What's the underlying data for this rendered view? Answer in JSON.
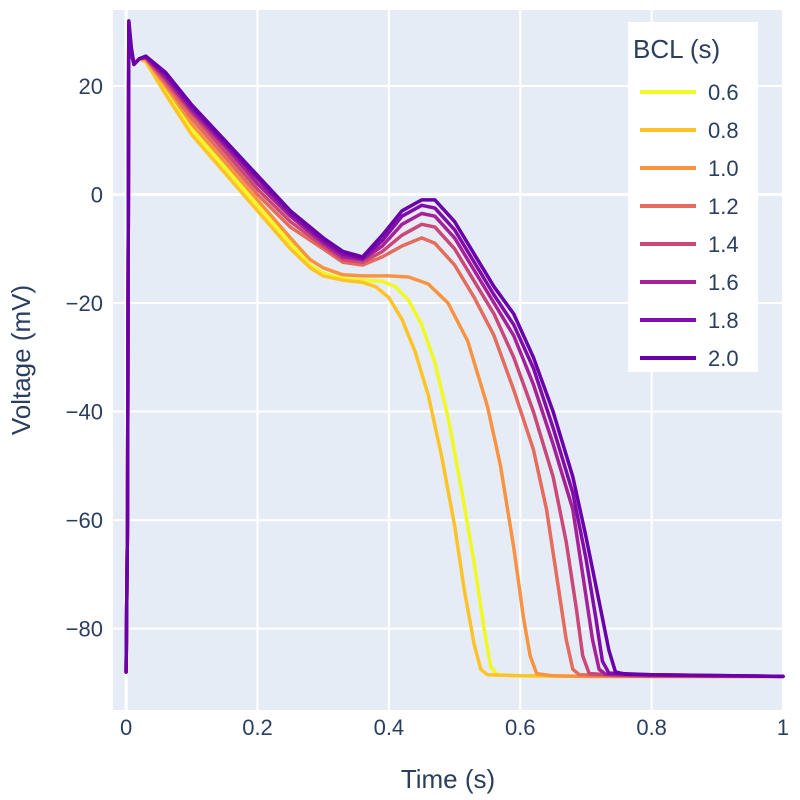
{
  "chart_data": {
    "type": "line",
    "xlabel": "Time (s)",
    "ylabel": "Voltage (mV)",
    "xlim": [
      -0.02,
      1.0
    ],
    "ylim": [
      -95,
      34
    ],
    "x_ticks": [
      0,
      0.2,
      0.4,
      0.6,
      0.8,
      1
    ],
    "x_tick_labels": [
      "0",
      "0.2",
      "0.4",
      "0.6",
      "0.8",
      "1"
    ],
    "y_ticks": [
      -80,
      -60,
      -40,
      -20,
      0,
      20
    ],
    "y_tick_labels": [
      "−80",
      "−60",
      "−40",
      "−20",
      "0",
      "20"
    ],
    "grid": true,
    "plot_background": "#e5ecf6",
    "legend": {
      "title": "BCL (s)",
      "position": "top-right"
    },
    "series": [
      {
        "name": "0.6",
        "color": "#f0f921",
        "points": [
          [
            0,
            -88
          ],
          [
            0.002,
            -60
          ],
          [
            0.004,
            31
          ],
          [
            0.008,
            26
          ],
          [
            0.012,
            24
          ],
          [
            0.02,
            25
          ],
          [
            0.03,
            24.5
          ],
          [
            0.06,
            19
          ],
          [
            0.1,
            12
          ],
          [
            0.15,
            5
          ],
          [
            0.2,
            -2
          ],
          [
            0.25,
            -9
          ],
          [
            0.28,
            -13
          ],
          [
            0.3,
            -14.5
          ],
          [
            0.33,
            -15.5
          ],
          [
            0.36,
            -15.8
          ],
          [
            0.39,
            -16
          ],
          [
            0.41,
            -17
          ],
          [
            0.43,
            -19.5
          ],
          [
            0.45,
            -24
          ],
          [
            0.47,
            -31
          ],
          [
            0.49,
            -41
          ],
          [
            0.51,
            -54
          ],
          [
            0.53,
            -68
          ],
          [
            0.545,
            -80
          ],
          [
            0.555,
            -87
          ],
          [
            0.565,
            -88.5
          ],
          [
            0.6,
            -88.7
          ],
          [
            0.7,
            -88.8
          ],
          [
            0.8,
            -88.8
          ],
          [
            1.0,
            -88.8
          ]
        ]
      },
      {
        "name": "0.8",
        "color": "#fdc328",
        "points": [
          [
            0,
            -88
          ],
          [
            0.002,
            -60
          ],
          [
            0.004,
            31
          ],
          [
            0.008,
            26
          ],
          [
            0.012,
            24
          ],
          [
            0.02,
            25
          ],
          [
            0.03,
            24.5
          ],
          [
            0.06,
            18.5
          ],
          [
            0.1,
            11
          ],
          [
            0.15,
            4
          ],
          [
            0.2,
            -3
          ],
          [
            0.25,
            -10
          ],
          [
            0.28,
            -13.5
          ],
          [
            0.3,
            -15
          ],
          [
            0.33,
            -15.8
          ],
          [
            0.36,
            -16.2
          ],
          [
            0.38,
            -17
          ],
          [
            0.4,
            -19
          ],
          [
            0.42,
            -23
          ],
          [
            0.44,
            -29
          ],
          [
            0.46,
            -37
          ],
          [
            0.48,
            -48
          ],
          [
            0.5,
            -61
          ],
          [
            0.515,
            -73
          ],
          [
            0.53,
            -83
          ],
          [
            0.54,
            -87.5
          ],
          [
            0.55,
            -88.5
          ],
          [
            0.6,
            -88.7
          ],
          [
            0.7,
            -88.8
          ],
          [
            0.8,
            -88.8
          ],
          [
            1.0,
            -88.8
          ]
        ]
      },
      {
        "name": "1.0",
        "color": "#f89441",
        "points": [
          [
            0,
            -88
          ],
          [
            0.002,
            -60
          ],
          [
            0.004,
            31
          ],
          [
            0.008,
            26
          ],
          [
            0.012,
            24
          ],
          [
            0.02,
            25
          ],
          [
            0.03,
            25
          ],
          [
            0.06,
            20
          ],
          [
            0.1,
            13
          ],
          [
            0.15,
            6
          ],
          [
            0.2,
            -1
          ],
          [
            0.25,
            -8
          ],
          [
            0.28,
            -12
          ],
          [
            0.3,
            -13.5
          ],
          [
            0.33,
            -14.8
          ],
          [
            0.36,
            -15
          ],
          [
            0.4,
            -15
          ],
          [
            0.43,
            -15.2
          ],
          [
            0.46,
            -16.5
          ],
          [
            0.49,
            -20
          ],
          [
            0.52,
            -27
          ],
          [
            0.55,
            -39
          ],
          [
            0.57,
            -50
          ],
          [
            0.59,
            -65
          ],
          [
            0.605,
            -78
          ],
          [
            0.615,
            -85
          ],
          [
            0.625,
            -88.3
          ],
          [
            0.65,
            -88.7
          ],
          [
            0.7,
            -88.8
          ],
          [
            0.8,
            -88.8
          ],
          [
            1.0,
            -88.8
          ]
        ]
      },
      {
        "name": "1.2",
        "color": "#e56b5d",
        "points": [
          [
            0,
            -88
          ],
          [
            0.002,
            -60
          ],
          [
            0.004,
            31
          ],
          [
            0.008,
            26
          ],
          [
            0.012,
            24
          ],
          [
            0.02,
            25
          ],
          [
            0.03,
            25
          ],
          [
            0.06,
            20.5
          ],
          [
            0.1,
            14
          ],
          [
            0.15,
            7
          ],
          [
            0.2,
            0
          ],
          [
            0.25,
            -6
          ],
          [
            0.3,
            -10
          ],
          [
            0.33,
            -12.5
          ],
          [
            0.36,
            -13
          ],
          [
            0.39,
            -11.5
          ],
          [
            0.42,
            -9.5
          ],
          [
            0.45,
            -8
          ],
          [
            0.47,
            -9
          ],
          [
            0.5,
            -13
          ],
          [
            0.53,
            -19
          ],
          [
            0.56,
            -26
          ],
          [
            0.59,
            -36
          ],
          [
            0.62,
            -47
          ],
          [
            0.64,
            -58
          ],
          [
            0.655,
            -70
          ],
          [
            0.67,
            -82
          ],
          [
            0.68,
            -87.5
          ],
          [
            0.69,
            -88.5
          ],
          [
            0.75,
            -88.7
          ],
          [
            0.8,
            -88.8
          ],
          [
            1.0,
            -88.8
          ]
        ]
      },
      {
        "name": "1.4",
        "color": "#cb4778",
        "points": [
          [
            0,
            -88
          ],
          [
            0.002,
            -60
          ],
          [
            0.004,
            31
          ],
          [
            0.008,
            26
          ],
          [
            0.012,
            24
          ],
          [
            0.02,
            25
          ],
          [
            0.03,
            25.2
          ],
          [
            0.06,
            21
          ],
          [
            0.1,
            15
          ],
          [
            0.15,
            8
          ],
          [
            0.2,
            1
          ],
          [
            0.25,
            -5
          ],
          [
            0.3,
            -9.5
          ],
          [
            0.33,
            -12
          ],
          [
            0.36,
            -12.5
          ],
          [
            0.39,
            -10.5
          ],
          [
            0.42,
            -7.5
          ],
          [
            0.45,
            -5.5
          ],
          [
            0.47,
            -6
          ],
          [
            0.5,
            -10
          ],
          [
            0.53,
            -16
          ],
          [
            0.56,
            -22
          ],
          [
            0.59,
            -30
          ],
          [
            0.62,
            -40
          ],
          [
            0.65,
            -52
          ],
          [
            0.67,
            -64
          ],
          [
            0.685,
            -76
          ],
          [
            0.695,
            -85
          ],
          [
            0.705,
            -88.3
          ],
          [
            0.75,
            -88.6
          ],
          [
            0.8,
            -88.7
          ],
          [
            1.0,
            -88.8
          ]
        ]
      },
      {
        "name": "1.6",
        "color": "#a62098",
        "points": [
          [
            0,
            -88
          ],
          [
            0.002,
            -60
          ],
          [
            0.004,
            31
          ],
          [
            0.008,
            26
          ],
          [
            0.012,
            24
          ],
          [
            0.02,
            25
          ],
          [
            0.03,
            25.3
          ],
          [
            0.06,
            21.5
          ],
          [
            0.1,
            15.5
          ],
          [
            0.15,
            9
          ],
          [
            0.2,
            2
          ],
          [
            0.25,
            -4
          ],
          [
            0.3,
            -9
          ],
          [
            0.33,
            -11.5
          ],
          [
            0.36,
            -12
          ],
          [
            0.39,
            -9.5
          ],
          [
            0.42,
            -5.5
          ],
          [
            0.45,
            -3.5
          ],
          [
            0.47,
            -4
          ],
          [
            0.5,
            -8
          ],
          [
            0.53,
            -14
          ],
          [
            0.56,
            -20
          ],
          [
            0.59,
            -26
          ],
          [
            0.62,
            -35
          ],
          [
            0.65,
            -46
          ],
          [
            0.68,
            -58
          ],
          [
            0.695,
            -70
          ],
          [
            0.71,
            -82
          ],
          [
            0.72,
            -87.5
          ],
          [
            0.73,
            -88.4
          ],
          [
            0.8,
            -88.6
          ],
          [
            1.0,
            -88.8
          ]
        ]
      },
      {
        "name": "1.8",
        "color": "#800da8",
        "points": [
          [
            0,
            -88
          ],
          [
            0.002,
            -60
          ],
          [
            0.004,
            31
          ],
          [
            0.008,
            26
          ],
          [
            0.012,
            24
          ],
          [
            0.02,
            25
          ],
          [
            0.03,
            25.4
          ],
          [
            0.06,
            22
          ],
          [
            0.1,
            16
          ],
          [
            0.15,
            9.5
          ],
          [
            0.2,
            3
          ],
          [
            0.25,
            -3.5
          ],
          [
            0.3,
            -8.5
          ],
          [
            0.33,
            -11
          ],
          [
            0.36,
            -11.8
          ],
          [
            0.39,
            -8.5
          ],
          [
            0.42,
            -4
          ],
          [
            0.45,
            -2
          ],
          [
            0.47,
            -2.5
          ],
          [
            0.5,
            -6.5
          ],
          [
            0.53,
            -12.5
          ],
          [
            0.56,
            -18.5
          ],
          [
            0.59,
            -24
          ],
          [
            0.62,
            -32
          ],
          [
            0.65,
            -43
          ],
          [
            0.68,
            -55
          ],
          [
            0.7,
            -67
          ],
          [
            0.715,
            -78
          ],
          [
            0.725,
            -86
          ],
          [
            0.735,
            -88.2
          ],
          [
            0.8,
            -88.5
          ],
          [
            1.0,
            -88.8
          ]
        ]
      },
      {
        "name": "2.0",
        "color": "#6a00a8",
        "points": [
          [
            0,
            -88
          ],
          [
            0.002,
            -60
          ],
          [
            0.004,
            32
          ],
          [
            0.008,
            27
          ],
          [
            0.012,
            24
          ],
          [
            0.02,
            25
          ],
          [
            0.03,
            25.5
          ],
          [
            0.06,
            22.5
          ],
          [
            0.1,
            16.5
          ],
          [
            0.15,
            10
          ],
          [
            0.2,
            3.5
          ],
          [
            0.25,
            -3
          ],
          [
            0.3,
            -8
          ],
          [
            0.33,
            -10.5
          ],
          [
            0.36,
            -11.5
          ],
          [
            0.39,
            -7.5
          ],
          [
            0.42,
            -3
          ],
          [
            0.45,
            -1
          ],
          [
            0.47,
            -1
          ],
          [
            0.5,
            -5
          ],
          [
            0.53,
            -11
          ],
          [
            0.56,
            -17
          ],
          [
            0.59,
            -22
          ],
          [
            0.62,
            -30
          ],
          [
            0.65,
            -40
          ],
          [
            0.68,
            -52
          ],
          [
            0.7,
            -63
          ],
          [
            0.72,
            -75
          ],
          [
            0.735,
            -84
          ],
          [
            0.745,
            -88
          ],
          [
            0.76,
            -88.4
          ],
          [
            0.8,
            -88.5
          ],
          [
            1.0,
            -88.8
          ]
        ]
      }
    ]
  }
}
